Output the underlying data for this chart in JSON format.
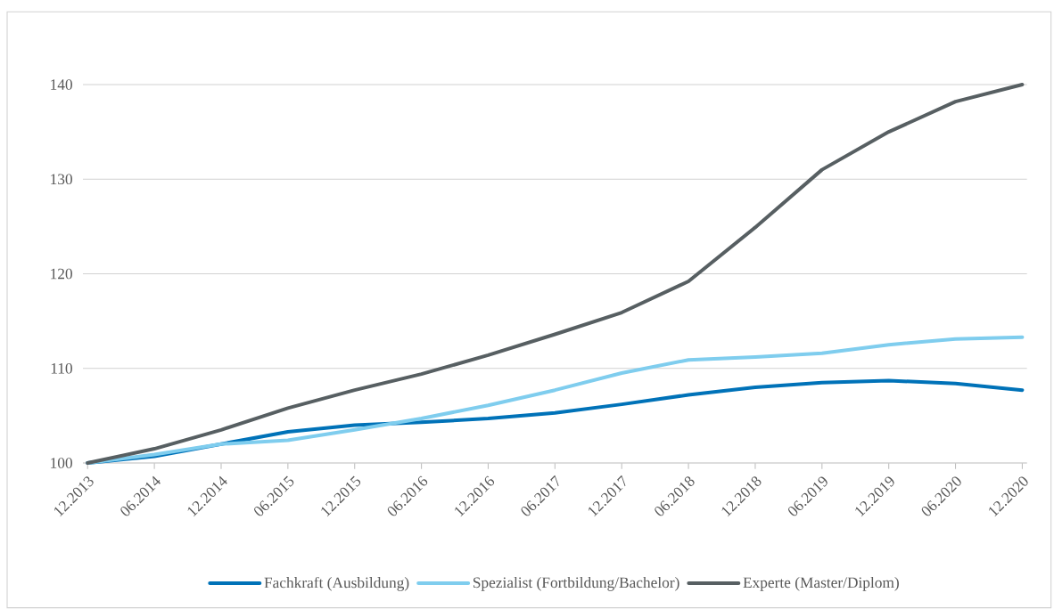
{
  "chart_data": {
    "type": "line",
    "categories": [
      "12.2013",
      "06.2014",
      "12.2014",
      "06.2015",
      "12.2015",
      "06.2016",
      "12.2016",
      "06.2017",
      "12.2017",
      "06.2018",
      "12.2018",
      "06.2019",
      "12.2019",
      "06.2020",
      "12.2020"
    ],
    "series": [
      {
        "name": "Fachkraft (Ausbildung)",
        "color": "#0072b8",
        "values": [
          100,
          100.7,
          102.0,
          103.3,
          104.0,
          104.3,
          104.7,
          105.3,
          106.2,
          107.2,
          108.0,
          108.5,
          108.7,
          108.4,
          107.7
        ]
      },
      {
        "name": "Spezialist (Fortbildung/Bachelor)",
        "color": "#7fcdee",
        "values": [
          100,
          100.9,
          102.0,
          102.4,
          103.5,
          104.7,
          106.1,
          107.7,
          109.5,
          110.9,
          111.2,
          111.6,
          112.5,
          113.1,
          113.3
        ]
      },
      {
        "name": "Experte (Master/Diplom)",
        "color": "#575f62",
        "values": [
          100,
          101.5,
          103.5,
          105.8,
          107.7,
          109.4,
          111.4,
          113.6,
          115.9,
          119.2,
          124.9,
          131.0,
          135.0,
          138.2,
          140
        ]
      }
    ],
    "ylim": [
      100,
      140
    ],
    "yticks": [
      100,
      110,
      120,
      130,
      140
    ],
    "grid": "y",
    "legend": "bottom",
    "marker": "none",
    "line_style": "solid"
  }
}
